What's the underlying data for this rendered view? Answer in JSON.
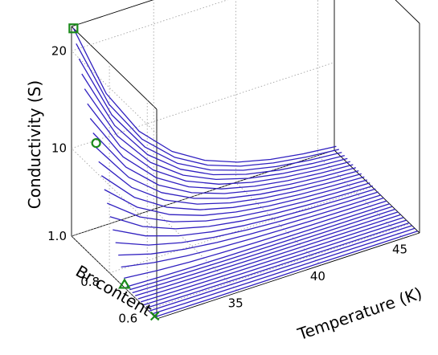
{
  "chart_data": {
    "type": "line",
    "projection": "3d-waterfall",
    "title": "",
    "xlabel": "Temperature (K)",
    "ylabel": "Br content",
    "zlabel": "Conductivity (S)",
    "xlim": [
      30,
      46
    ],
    "ylim": [
      0.55,
      1.0
    ],
    "zlim": [
      1.0,
      22.5
    ],
    "x_ticks": [
      35,
      40,
      45
    ],
    "x_tick_labels": [
      "35",
      "40",
      "45"
    ],
    "y_ticks": [
      0.6,
      0.8
    ],
    "y_tick_labels": [
      "0.6",
      "0.8"
    ],
    "z_ticks": [
      1.0,
      10,
      20
    ],
    "z_tick_labels": [
      "1.0",
      "10",
      "20"
    ],
    "grid": true,
    "line_color": "#3020c0",
    "marker_color": "#1a8a1a",
    "series_count": 30,
    "series_note_values": {
      "br_range": [
        0.56,
        0.99
      ],
      "temperature_points": [
        30,
        32,
        34,
        36,
        38,
        40,
        42,
        44,
        46
      ]
    },
    "markers": [
      {
        "shape": "square",
        "x": 30,
        "y": 0.99,
        "z": 22.5
      },
      {
        "shape": "circle",
        "x": 30,
        "y": 0.87,
        "z": 13.0
      },
      {
        "shape": "triangle",
        "x": 30,
        "y": 0.72,
        "z": 1.3
      },
      {
        "shape": "cross",
        "x": 30,
        "y": 0.56,
        "z": 1.1
      }
    ]
  }
}
